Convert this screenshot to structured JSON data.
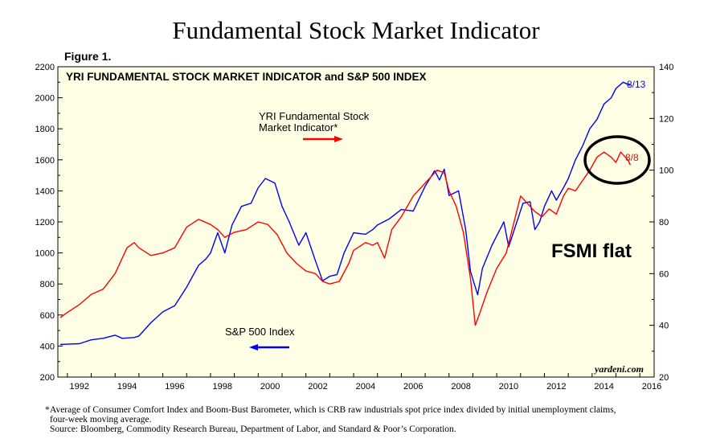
{
  "page": {
    "title": "Fundamental Stock Market Indicator",
    "figure_label": "Figure 1.",
    "footnote_star": "*",
    "footnote_line1": "Average of Consumer Comfort Index and Boom-Bust Barometer, which is CRB raw industrials spot price index divided by initial unemployment claims,",
    "footnote_line2": "four-week moving average.",
    "footnote_line3": "Source: Bloomberg, Commodity Research Bureau, Department of Labor, and Standard & Poor’s Corporation."
  },
  "chart_data": {
    "type": "line",
    "title": "YRI FUNDAMENTAL STOCK MARKET INDICATOR and S&P 500 INDEX",
    "background_color": "#ffffe6",
    "x_range": [
      1991.6,
      2016.6
    ],
    "x_ticks": [
      1992,
      1994,
      1996,
      1998,
      2000,
      2002,
      2004,
      2006,
      2008,
      2010,
      2012,
      2014,
      2016
    ],
    "left_axis": {
      "range": [
        200,
        2200
      ],
      "ticks": [
        200,
        400,
        600,
        800,
        1000,
        1200,
        1400,
        1600,
        1800,
        2000,
        2200
      ]
    },
    "right_axis": {
      "range": [
        20,
        140
      ],
      "ticks": [
        20,
        40,
        60,
        80,
        100,
        120,
        140
      ]
    },
    "grid": false,
    "series": [
      {
        "name": "S&P 500 Index",
        "axis": "left",
        "color": "#0000ff",
        "points": [
          [
            1991.7,
            410
          ],
          [
            1992.0,
            412
          ],
          [
            1992.5,
            415
          ],
          [
            1993.0,
            440
          ],
          [
            1993.5,
            450
          ],
          [
            1994.0,
            470
          ],
          [
            1994.3,
            450
          ],
          [
            1994.8,
            455
          ],
          [
            1995.0,
            465
          ],
          [
            1995.5,
            550
          ],
          [
            1996.0,
            620
          ],
          [
            1996.5,
            660
          ],
          [
            1997.0,
            780
          ],
          [
            1997.5,
            920
          ],
          [
            1997.8,
            960
          ],
          [
            1998.0,
            1000
          ],
          [
            1998.3,
            1130
          ],
          [
            1998.6,
            1000
          ],
          [
            1998.9,
            1180
          ],
          [
            1999.3,
            1300
          ],
          [
            1999.7,
            1320
          ],
          [
            2000.0,
            1420
          ],
          [
            2000.3,
            1480
          ],
          [
            2000.7,
            1450
          ],
          [
            2001.0,
            1300
          ],
          [
            2001.3,
            1200
          ],
          [
            2001.7,
            1050
          ],
          [
            2002.0,
            1130
          ],
          [
            2002.4,
            950
          ],
          [
            2002.7,
            820
          ],
          [
            2003.0,
            850
          ],
          [
            2003.3,
            860
          ],
          [
            2003.6,
            1000
          ],
          [
            2004.0,
            1130
          ],
          [
            2004.5,
            1120
          ],
          [
            2004.8,
            1150
          ],
          [
            2005.0,
            1180
          ],
          [
            2005.5,
            1220
          ],
          [
            2006.0,
            1280
          ],
          [
            2006.5,
            1270
          ],
          [
            2007.0,
            1430
          ],
          [
            2007.4,
            1530
          ],
          [
            2007.6,
            1470
          ],
          [
            2007.8,
            1540
          ],
          [
            2008.0,
            1370
          ],
          [
            2008.4,
            1400
          ],
          [
            2008.7,
            1150
          ],
          [
            2008.9,
            880
          ],
          [
            2009.2,
            730
          ],
          [
            2009.4,
            900
          ],
          [
            2009.8,
            1050
          ],
          [
            2010.0,
            1110
          ],
          [
            2010.3,
            1200
          ],
          [
            2010.5,
            1040
          ],
          [
            2010.8,
            1180
          ],
          [
            2011.1,
            1320
          ],
          [
            2011.4,
            1330
          ],
          [
            2011.6,
            1150
          ],
          [
            2011.8,
            1200
          ],
          [
            2012.0,
            1300
          ],
          [
            2012.3,
            1400
          ],
          [
            2012.5,
            1340
          ],
          [
            2012.8,
            1420
          ],
          [
            2013.0,
            1480
          ],
          [
            2013.3,
            1600
          ],
          [
            2013.6,
            1690
          ],
          [
            2013.9,
            1800
          ],
          [
            2014.2,
            1860
          ],
          [
            2014.5,
            1960
          ],
          [
            2014.8,
            2000
          ],
          [
            2015.0,
            2060
          ],
          [
            2015.3,
            2100
          ],
          [
            2015.6,
            2080
          ]
        ],
        "end_label": "8/13"
      },
      {
        "name": "YRI Fundamental Stock Market Indicator*",
        "axis": "right",
        "color": "#ff0000",
        "points": [
          [
            1991.7,
            43
          ],
          [
            1992.0,
            45
          ],
          [
            1992.5,
            48
          ],
          [
            1993.0,
            52
          ],
          [
            1993.5,
            54
          ],
          [
            1994.0,
            60
          ],
          [
            1994.5,
            70
          ],
          [
            1994.8,
            72
          ],
          [
            1995.0,
            70
          ],
          [
            1995.5,
            67
          ],
          [
            1996.0,
            68
          ],
          [
            1996.5,
            70
          ],
          [
            1997.0,
            78
          ],
          [
            1997.5,
            81
          ],
          [
            1998.0,
            79
          ],
          [
            1998.3,
            77
          ],
          [
            1998.6,
            74
          ],
          [
            1999.0,
            76
          ],
          [
            1999.5,
            77
          ],
          [
            2000.0,
            80
          ],
          [
            2000.4,
            79
          ],
          [
            2000.8,
            75
          ],
          [
            2001.2,
            68
          ],
          [
            2001.6,
            64
          ],
          [
            2002.0,
            61
          ],
          [
            2002.4,
            60
          ],
          [
            2002.7,
            57
          ],
          [
            2003.0,
            56
          ],
          [
            2003.4,
            57
          ],
          [
            2003.8,
            64
          ],
          [
            2004.0,
            69
          ],
          [
            2004.5,
            72
          ],
          [
            2004.8,
            71
          ],
          [
            2005.0,
            72
          ],
          [
            2005.3,
            66
          ],
          [
            2005.6,
            77
          ],
          [
            2006.0,
            82
          ],
          [
            2006.5,
            90
          ],
          [
            2006.9,
            94
          ],
          [
            2007.2,
            97
          ],
          [
            2007.5,
            100
          ],
          [
            2007.8,
            99
          ],
          [
            2008.0,
            92
          ],
          [
            2008.3,
            86
          ],
          [
            2008.6,
            76
          ],
          [
            2008.9,
            58
          ],
          [
            2009.1,
            40
          ],
          [
            2009.3,
            45
          ],
          [
            2009.6,
            53
          ],
          [
            2010.0,
            62
          ],
          [
            2010.4,
            68
          ],
          [
            2010.7,
            79
          ],
          [
            2011.0,
            90
          ],
          [
            2011.3,
            87
          ],
          [
            2011.6,
            84
          ],
          [
            2011.9,
            82
          ],
          [
            2012.2,
            85
          ],
          [
            2012.5,
            83
          ],
          [
            2012.8,
            90
          ],
          [
            2013.0,
            93
          ],
          [
            2013.3,
            92
          ],
          [
            2013.6,
            96
          ],
          [
            2013.9,
            100
          ],
          [
            2014.2,
            105
          ],
          [
            2014.5,
            107
          ],
          [
            2014.8,
            105
          ],
          [
            2015.0,
            103
          ],
          [
            2015.2,
            107
          ],
          [
            2015.5,
            104
          ],
          [
            2015.6,
            102
          ]
        ],
        "end_label": "8/8"
      }
    ],
    "annotations": {
      "fsmi_line1": "YRI Fundamental Stock",
      "fsmi_line2": "Market Indicator*",
      "sp_label": "S&P 500 Index",
      "callout": "FSMI flat",
      "credit": "yardeni.com"
    }
  }
}
